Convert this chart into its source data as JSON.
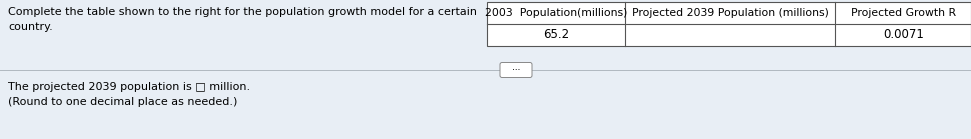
{
  "bg_color": "#e8eef5",
  "table_bg": "#ffffff",
  "left_text_line1": "Complete the table shown to the right for the population growth model for a certain",
  "left_text_line2": "country.",
  "bottom_text_line1": "The projected 2039 population is □ million.",
  "bottom_text_line2": "(Round to one decimal place as needed.)",
  "col_headers": [
    "2003  Population(millions)",
    "Projected 2039 Population (millions)",
    "Projected Growth R"
  ],
  "col_values": [
    "65.2",
    "",
    "0.0071"
  ],
  "font_size_body": 8.0,
  "font_size_header": 7.8,
  "font_size_value": 8.5
}
